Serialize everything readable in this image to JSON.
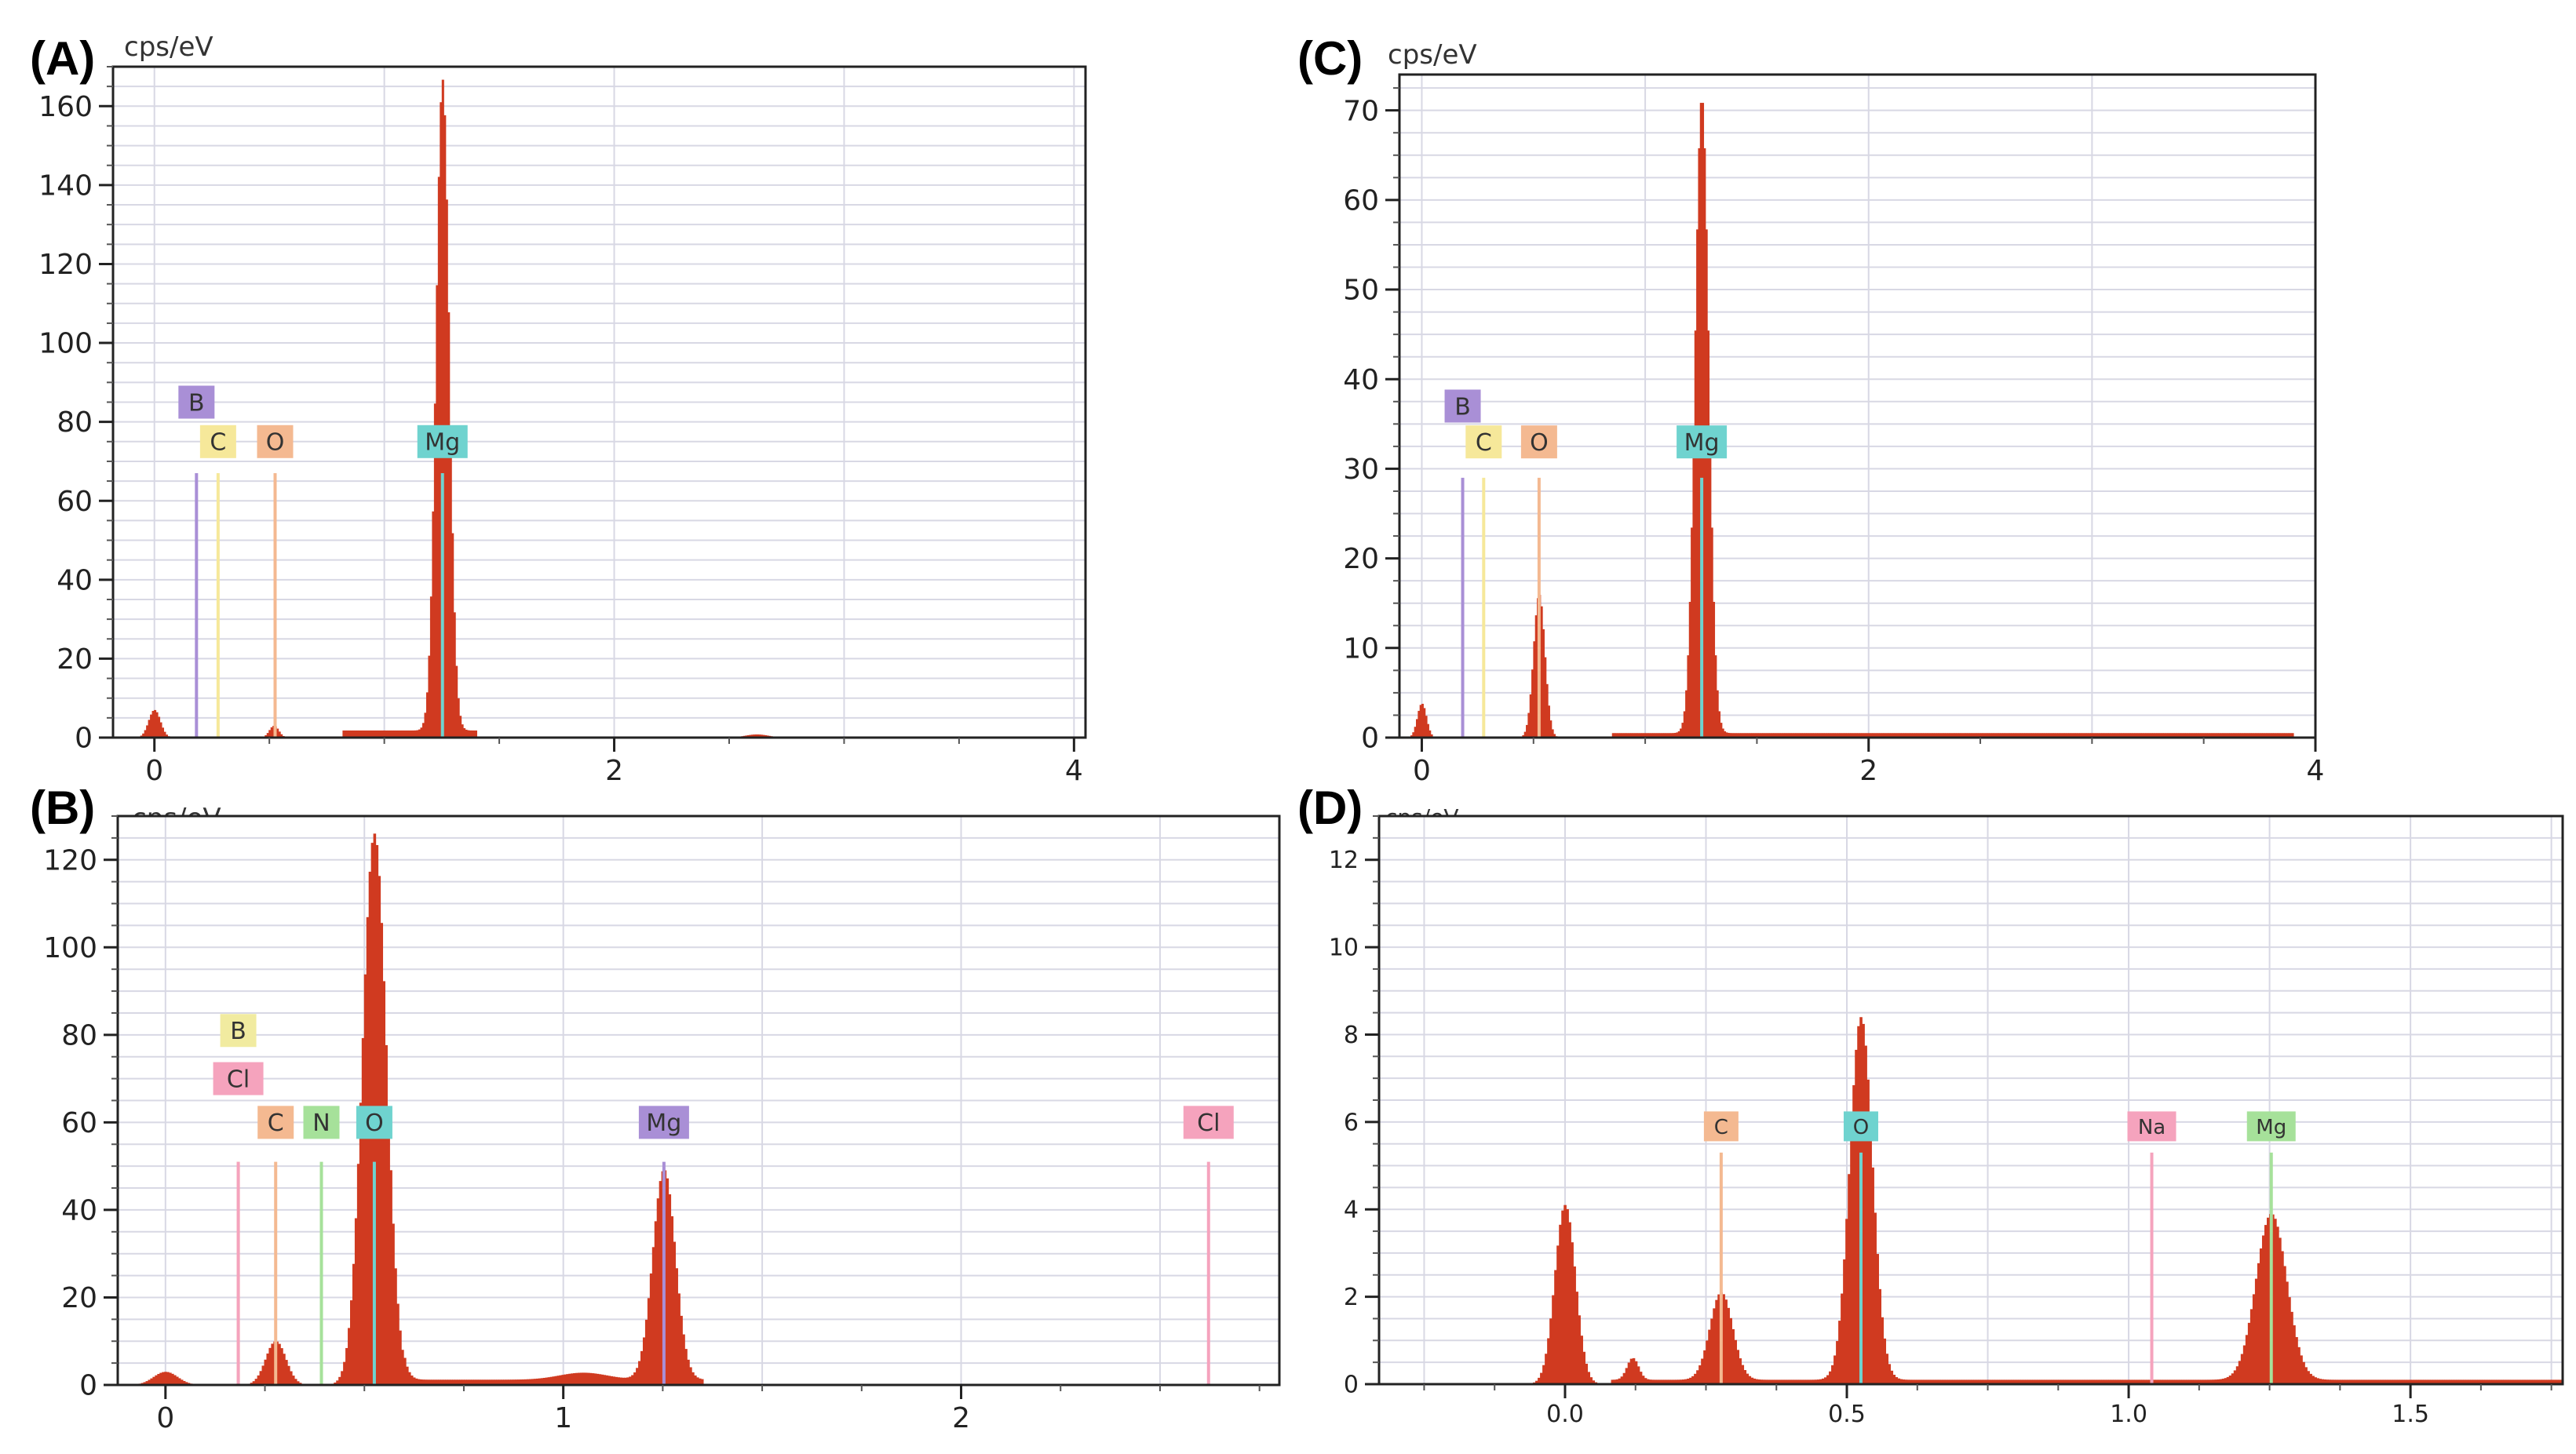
{
  "colors": {
    "spectrum": "#d03a20",
    "grid": "#d8d8e4",
    "frame": "#222222",
    "B": "#a98fd6",
    "B_yellow": "#f1eba0",
    "C": "#f6e89a",
    "C_orange": "#f4b991",
    "O": "#f4b991",
    "O_cyan": "#6fd3cf",
    "N": "#a6e19a",
    "Mg": "#6fd3cf",
    "Mg_purple": "#a98fd6",
    "Mg_green": "#a6e19a",
    "Cl": "#f5a3bd",
    "Na": "#f5a3bd"
  },
  "chart_data": [
    {
      "id": "A",
      "panel_label": "(A)",
      "type": "area",
      "ylabel": "cps/eV",
      "xlabel": "",
      "xlim": [
        -0.18,
        4.05
      ],
      "ylim": [
        0,
        170
      ],
      "x_ticks": [
        0,
        2,
        4
      ],
      "x_tick_labels": [
        "0",
        "2",
        "4"
      ],
      "y_ticks": [
        0,
        20,
        40,
        60,
        80,
        100,
        120,
        140,
        160
      ],
      "y_tick_labels": [
        "0",
        "20",
        "40",
        "60",
        "80",
        "100",
        "120",
        "140",
        "160"
      ],
      "peaks": [
        {
          "x": 0.0,
          "y": 7,
          "w": 0.025
        },
        {
          "x": 0.52,
          "y": 3,
          "w": 0.02
        },
        {
          "x": 1.253,
          "y": 165,
          "w": 0.028
        },
        {
          "x": 2.62,
          "y": 0.8,
          "w": 0.05
        }
      ],
      "baseline": {
        "from": 0.82,
        "to": 1.4,
        "y": 1.8
      },
      "element_lines": [
        {
          "label": "B",
          "x": 0.183,
          "y": 67,
          "color": "#a98fd6",
          "tag_y": 85
        },
        {
          "label": "C",
          "x": 0.277,
          "y": 67,
          "color": "#f6e89a",
          "tag_y": 75
        },
        {
          "label": "O",
          "x": 0.525,
          "y": 67,
          "color": "#f4b991",
          "tag_y": 75
        },
        {
          "label": "Mg",
          "x": 1.253,
          "y": 67,
          "color": "#6fd3cf",
          "tag_y": 75
        }
      ]
    },
    {
      "id": "B",
      "panel_label": "(B)",
      "type": "area",
      "ylabel": "cps/eV",
      "xlabel": "",
      "xlim": [
        -0.12,
        2.8
      ],
      "ylim": [
        0,
        130
      ],
      "x_ticks": [
        0,
        1,
        2
      ],
      "x_tick_labels": [
        "0",
        "1",
        "2"
      ],
      "y_ticks": [
        0,
        20,
        40,
        60,
        80,
        100,
        120
      ],
      "y_tick_labels": [
        "0",
        "20",
        "40",
        "60",
        "80",
        "100",
        "120"
      ],
      "peaks": [
        {
          "x": 0.0,
          "y": 3,
          "w": 0.03
        },
        {
          "x": 0.277,
          "y": 10,
          "w": 0.025
        },
        {
          "x": 0.525,
          "y": 126,
          "w": 0.03
        },
        {
          "x": 1.253,
          "y": 48,
          "w": 0.028
        },
        {
          "x": 1.05,
          "y": 1.6,
          "w": 0.06
        }
      ],
      "baseline": {
        "from": 0.6,
        "to": 1.35,
        "y": 1.2
      },
      "element_lines": [
        {
          "label": "B",
          "x": 0.183,
          "y": 51,
          "color": "#f1eba0",
          "tag_y": 81
        },
        {
          "label": "Cl",
          "x": 0.183,
          "y": 51,
          "color": "#f5a3bd",
          "tag_y": 70
        },
        {
          "label": "C",
          "x": 0.277,
          "y": 51,
          "color": "#f4b991",
          "tag_y": 60
        },
        {
          "label": "N",
          "x": 0.392,
          "y": 51,
          "color": "#a6e19a",
          "tag_y": 60
        },
        {
          "label": "O",
          "x": 0.525,
          "y": 51,
          "color": "#6fd3cf",
          "tag_y": 60
        },
        {
          "label": "Mg",
          "x": 1.253,
          "y": 51,
          "color": "#a98fd6",
          "tag_y": 60
        },
        {
          "label": "Cl",
          "x": 2.622,
          "y": 51,
          "color": "#f5a3bd",
          "tag_y": 60
        }
      ]
    },
    {
      "id": "C",
      "panel_label": "(C)",
      "type": "area",
      "ylabel": "cps/eV",
      "xlabel": "",
      "xlim": [
        -0.1,
        4.0
      ],
      "ylim": [
        0,
        74
      ],
      "x_ticks": [
        0,
        2,
        4
      ],
      "x_tick_labels": [
        "0",
        "2",
        "4"
      ],
      "y_ticks": [
        0,
        10,
        20,
        30,
        40,
        50,
        60,
        70
      ],
      "y_tick_labels": [
        "0",
        "10",
        "20",
        "30",
        "40",
        "50",
        "60",
        "70"
      ],
      "peaks": [
        {
          "x": 0.0,
          "y": 3.8,
          "w": 0.02
        },
        {
          "x": 0.525,
          "y": 16,
          "w": 0.025
        },
        {
          "x": 1.253,
          "y": 71,
          "w": 0.03
        }
      ],
      "baseline": {
        "from": 0.85,
        "to": 3.9,
        "y": 0.5
      },
      "element_lines": [
        {
          "label": "B",
          "x": 0.183,
          "y": 29,
          "color": "#a98fd6",
          "tag_y": 37
        },
        {
          "label": "C",
          "x": 0.277,
          "y": 29,
          "color": "#f6e89a",
          "tag_y": 33
        },
        {
          "label": "O",
          "x": 0.525,
          "y": 29,
          "color": "#f4b991",
          "tag_y": 33
        },
        {
          "label": "Mg",
          "x": 1.253,
          "y": 29,
          "color": "#6fd3cf",
          "tag_y": 33
        }
      ]
    },
    {
      "id": "D",
      "panel_label": "(D)",
      "type": "area",
      "ylabel": "cps/eV",
      "xlabel": "",
      "xlim": [
        -0.33,
        1.77
      ],
      "ylim": [
        0,
        13
      ],
      "x_ticks": [
        0.0,
        0.5,
        1.0,
        1.5
      ],
      "x_tick_labels": [
        "0.0",
        "0.5",
        "1.0",
        "1.5"
      ],
      "y_ticks": [
        0,
        2,
        4,
        6,
        8,
        10,
        12
      ],
      "y_tick_labels": [
        "0",
        "2",
        "4",
        "6",
        "8",
        "10",
        "12"
      ],
      "peaks": [
        {
          "x": 0.0,
          "y": 4.1,
          "w": 0.018
        },
        {
          "x": 0.277,
          "y": 2.0,
          "w": 0.02
        },
        {
          "x": 0.525,
          "y": 8.3,
          "w": 0.02
        },
        {
          "x": 1.253,
          "y": 3.8,
          "w": 0.027
        },
        {
          "x": 0.12,
          "y": 0.5,
          "w": 0.01
        }
      ],
      "baseline": {
        "from": 0.08,
        "to": 1.77,
        "y": 0.1
      },
      "element_lines": [
        {
          "label": "C",
          "x": 0.277,
          "y": 5.3,
          "color": "#f4b991",
          "tag_y": 5.9
        },
        {
          "label": "O",
          "x": 0.525,
          "y": 5.3,
          "color": "#6fd3cf",
          "tag_y": 5.9
        },
        {
          "label": "Na",
          "x": 1.041,
          "y": 5.3,
          "color": "#f5a3bd",
          "tag_y": 5.9
        },
        {
          "label": "Mg",
          "x": 1.253,
          "y": 5.3,
          "color": "#a6e19a",
          "tag_y": 5.9
        }
      ]
    }
  ]
}
